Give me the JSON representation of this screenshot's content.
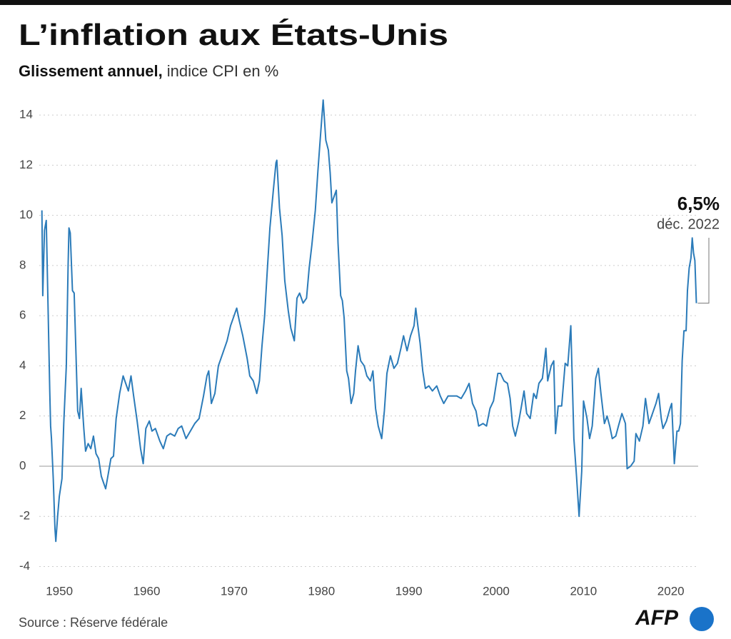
{
  "chart_data": {
    "type": "line",
    "title": "L’inflation aux États-Unis",
    "subtitle_bold": "Glissement annuel,",
    "subtitle": "indice CPI en %",
    "source": "Source : Réserve fédérale",
    "logo": "AFP",
    "annotation": {
      "label": "6,5%",
      "date": "déc. 2022"
    },
    "x": [
      1948.0,
      1948.1,
      1948.3,
      1948.5,
      1948.7,
      1948.9,
      1949.0,
      1949.1,
      1949.3,
      1949.5,
      1949.6,
      1949.8,
      1950.0,
      1950.3,
      1950.5,
      1950.8,
      1951.0,
      1951.1,
      1951.25,
      1951.5,
      1951.7,
      1951.9,
      1952.1,
      1952.3,
      1952.5,
      1952.8,
      1953.0,
      1953.3,
      1953.6,
      1953.9,
      1954.2,
      1954.5,
      1954.8,
      1955.0,
      1955.3,
      1955.6,
      1955.9,
      1956.2,
      1956.5,
      1956.9,
      1957.3,
      1957.6,
      1957.9,
      1958.2,
      1958.5,
      1958.9,
      1959.3,
      1959.6,
      1959.9,
      1960.3,
      1960.6,
      1961.0,
      1961.5,
      1961.9,
      1962.3,
      1962.7,
      1963.2,
      1963.6,
      1964.0,
      1964.5,
      1965.0,
      1965.5,
      1966.0,
      1966.5,
      1966.9,
      1967.1,
      1967.4,
      1967.8,
      1968.2,
      1968.7,
      1969.2,
      1969.6,
      1970.0,
      1970.3,
      1970.6,
      1971.0,
      1971.5,
      1971.8,
      1972.2,
      1972.6,
      1972.9,
      1973.2,
      1973.5,
      1973.8,
      1974.1,
      1974.5,
      1974.8,
      1974.9,
      1975.2,
      1975.5,
      1975.8,
      1976.2,
      1976.5,
      1976.9,
      1977.2,
      1977.5,
      1977.9,
      1978.3,
      1978.6,
      1978.9,
      1979.3,
      1979.6,
      1979.9,
      1980.2,
      1980.5,
      1980.8,
      1981.0,
      1981.2,
      1981.5,
      1981.7,
      1981.9,
      1982.2,
      1982.4,
      1982.6,
      1982.9,
      1983.1,
      1983.4,
      1983.7,
      1983.9,
      1984.2,
      1984.5,
      1984.9,
      1985.2,
      1985.6,
      1985.9,
      1986.2,
      1986.5,
      1986.9,
      1987.2,
      1987.5,
      1987.9,
      1988.3,
      1988.7,
      1989.1,
      1989.4,
      1989.8,
      1990.2,
      1990.6,
      1990.8,
      1991.0,
      1991.3,
      1991.6,
      1991.9,
      1992.3,
      1992.7,
      1993.2,
      1993.6,
      1994.0,
      1994.5,
      1995.0,
      1995.5,
      1996.0,
      1996.5,
      1996.9,
      1997.3,
      1997.7,
      1998.0,
      1998.5,
      1998.9,
      1999.3,
      1999.7,
      2000.2,
      2000.5,
      2000.9,
      2001.3,
      2001.6,
      2001.9,
      2002.2,
      2002.6,
      2002.9,
      2003.2,
      2003.5,
      2003.9,
      2004.3,
      2004.6,
      2004.9,
      2005.3,
      2005.7,
      2005.9,
      2006.3,
      2006.6,
      2006.8,
      2007.1,
      2007.5,
      2007.9,
      2008.2,
      2008.55,
      2008.9,
      2009.2,
      2009.5,
      2009.8,
      2010.0,
      2010.4,
      2010.7,
      2011.0,
      2011.4,
      2011.7,
      2012.0,
      2012.4,
      2012.7,
      2013.0,
      2013.3,
      2013.7,
      2014.0,
      2014.4,
      2014.8,
      2015.0,
      2015.4,
      2015.8,
      2016.0,
      2016.4,
      2016.8,
      2017.1,
      2017.5,
      2017.9,
      2018.3,
      2018.6,
      2018.9,
      2019.1,
      2019.5,
      2019.9,
      2020.1,
      2020.4,
      2020.7,
      2020.9,
      2021.1,
      2021.3,
      2021.5,
      2021.75,
      2021.9,
      2022.1,
      2022.3,
      2022.45,
      2022.6,
      2022.75,
      2022.92
    ],
    "series": [
      {
        "color": "#2b7bb9",
        "values": [
          10.2,
          6.8,
          9.4,
          9.8,
          6.5,
          3.0,
          1.6,
          1.1,
          -0.5,
          -2.5,
          -3.0,
          -2.0,
          -1.2,
          -0.5,
          1.7,
          4.0,
          8.0,
          9.5,
          9.3,
          7.0,
          6.9,
          4.5,
          2.2,
          1.9,
          3.1,
          1.5,
          0.6,
          0.9,
          0.7,
          1.2,
          0.5,
          0.3,
          -0.4,
          -0.6,
          -0.9,
          -0.3,
          0.3,
          0.4,
          1.9,
          2.9,
          3.6,
          3.3,
          3.0,
          3.6,
          2.8,
          1.8,
          0.7,
          0.1,
          1.5,
          1.8,
          1.4,
          1.5,
          1.0,
          0.7,
          1.2,
          1.3,
          1.2,
          1.5,
          1.6,
          1.1,
          1.4,
          1.7,
          1.9,
          2.8,
          3.6,
          3.8,
          2.5,
          2.9,
          4.0,
          4.5,
          5.0,
          5.6,
          6.0,
          6.3,
          5.8,
          5.2,
          4.3,
          3.6,
          3.4,
          2.9,
          3.4,
          4.8,
          6.0,
          7.8,
          9.5,
          11.0,
          12.1,
          12.2,
          10.3,
          9.2,
          7.4,
          6.2,
          5.5,
          5.0,
          6.7,
          6.9,
          6.5,
          6.7,
          7.9,
          8.8,
          10.2,
          11.8,
          13.2,
          14.6,
          13.0,
          12.6,
          11.7,
          10.5,
          10.8,
          11.0,
          8.9,
          6.8,
          6.6,
          5.9,
          3.8,
          3.5,
          2.5,
          2.9,
          3.8,
          4.8,
          4.2,
          4.0,
          3.6,
          3.4,
          3.8,
          2.3,
          1.6,
          1.1,
          2.2,
          3.7,
          4.4,
          3.9,
          4.1,
          4.7,
          5.2,
          4.6,
          5.2,
          5.6,
          6.3,
          5.7,
          4.9,
          3.8,
          3.1,
          3.2,
          3.0,
          3.2,
          2.8,
          2.5,
          2.8,
          2.8,
          2.8,
          2.7,
          3.0,
          3.3,
          2.5,
          2.2,
          1.6,
          1.7,
          1.6,
          2.3,
          2.6,
          3.7,
          3.7,
          3.4,
          3.3,
          2.7,
          1.6,
          1.2,
          1.8,
          2.4,
          3.0,
          2.1,
          1.9,
          2.9,
          2.7,
          3.3,
          3.5,
          4.7,
          3.4,
          4.0,
          4.2,
          1.3,
          2.4,
          2.4,
          4.1,
          4.0,
          5.6,
          1.1,
          -0.4,
          -2.0,
          -0.2,
          2.6,
          1.9,
          1.1,
          1.6,
          3.5,
          3.9,
          2.9,
          1.7,
          2.0,
          1.6,
          1.1,
          1.2,
          1.6,
          2.1,
          1.7,
          -0.1,
          0,
          0.2,
          1.3,
          1.0,
          1.6,
          2.7,
          1.7,
          2.1,
          2.5,
          2.9,
          1.9,
          1.5,
          1.8,
          2.3,
          2.5,
          0.1,
          1.4,
          1.4,
          1.7,
          4.2,
          5.4,
          5.4,
          7.0,
          7.9,
          8.3,
          9.1,
          8.5,
          8.2,
          6.5
        ]
      }
    ],
    "xlim": [
      1947.7,
      2023.7
    ],
    "xticks": [
      1950,
      1960,
      1970,
      1980,
      1990,
      2000,
      2010,
      2020
    ],
    "ylim": [
      -4.3,
      15
    ],
    "yticks": [
      -4,
      -2,
      0,
      2,
      4,
      6,
      8,
      10,
      12,
      14
    ],
    "grid": true
  }
}
